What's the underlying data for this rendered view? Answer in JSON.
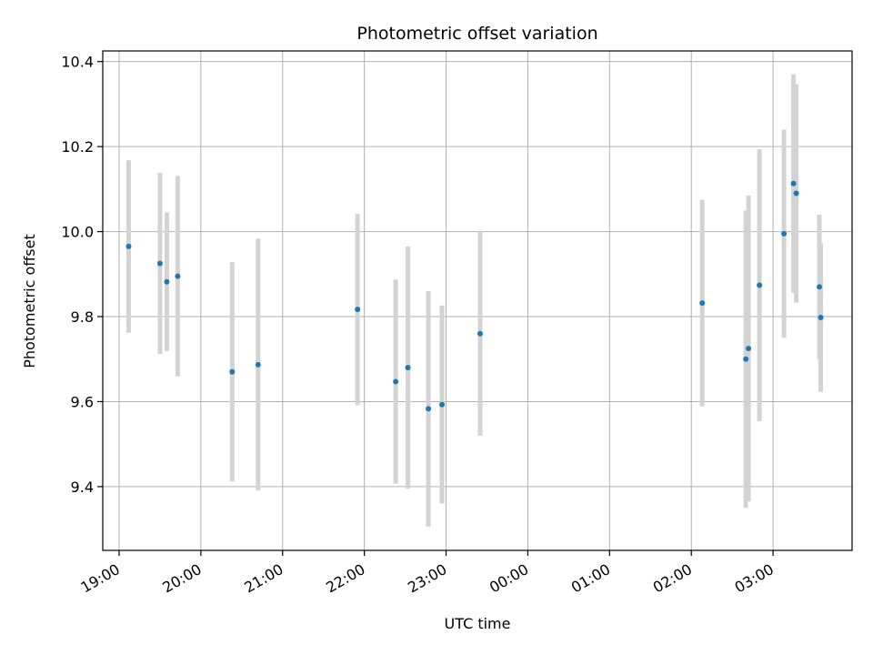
{
  "chart_data": {
    "type": "scatter",
    "title": "Photometric offset variation",
    "xlabel": "UTC time",
    "ylabel": "Photometric offset",
    "x_unit": "UTC",
    "xlim": [
      "18:48",
      "03:58"
    ],
    "ylim": [
      9.25,
      10.425
    ],
    "grid": true,
    "x_ticks": [
      "19:00",
      "20:00",
      "21:00",
      "22:00",
      "23:00",
      "00:00",
      "01:00",
      "02:00",
      "03:00"
    ],
    "y_ticks": [
      "9.4",
      "9.6",
      "9.8",
      "10.0",
      "10.2",
      "10.4"
    ],
    "point_color": "#1f77b4",
    "errorbar_color": "#d3d3d3",
    "points": [
      {
        "t": "19:07",
        "y": 9.965,
        "err": 0.203
      },
      {
        "t": "19:30",
        "y": 9.925,
        "err": 0.213
      },
      {
        "t": "19:35",
        "y": 9.882,
        "err": 0.163
      },
      {
        "t": "19:43",
        "y": 9.895,
        "err": 0.236
      },
      {
        "t": "20:23",
        "y": 9.67,
        "err": 0.258
      },
      {
        "t": "20:42",
        "y": 9.687,
        "err": 0.296
      },
      {
        "t": "21:55",
        "y": 9.817,
        "err": 0.225
      },
      {
        "t": "22:23",
        "y": 9.647,
        "err": 0.24
      },
      {
        "t": "22:32",
        "y": 9.68,
        "err": 0.285
      },
      {
        "t": "22:47",
        "y": 9.583,
        "err": 0.277
      },
      {
        "t": "22:57",
        "y": 9.593,
        "err": 0.233
      },
      {
        "t": "23:25",
        "y": 9.76,
        "err": 0.24
      },
      {
        "t": "02:08",
        "y": 9.832,
        "err": 0.243
      },
      {
        "t": "02:40",
        "y": 9.7,
        "err": 0.35
      },
      {
        "t": "02:42",
        "y": 9.725,
        "err": 0.36
      },
      {
        "t": "02:50",
        "y": 9.874,
        "err": 0.32
      },
      {
        "t": "03:08",
        "y": 9.995,
        "err": 0.245
      },
      {
        "t": "03:15",
        "y": 10.113,
        "err": 0.257
      },
      {
        "t": "03:17",
        "y": 10.09,
        "err": 0.257
      },
      {
        "t": "03:34",
        "y": 9.87,
        "err": 0.17
      },
      {
        "t": "03:35",
        "y": 9.798,
        "err": 0.175
      }
    ]
  }
}
